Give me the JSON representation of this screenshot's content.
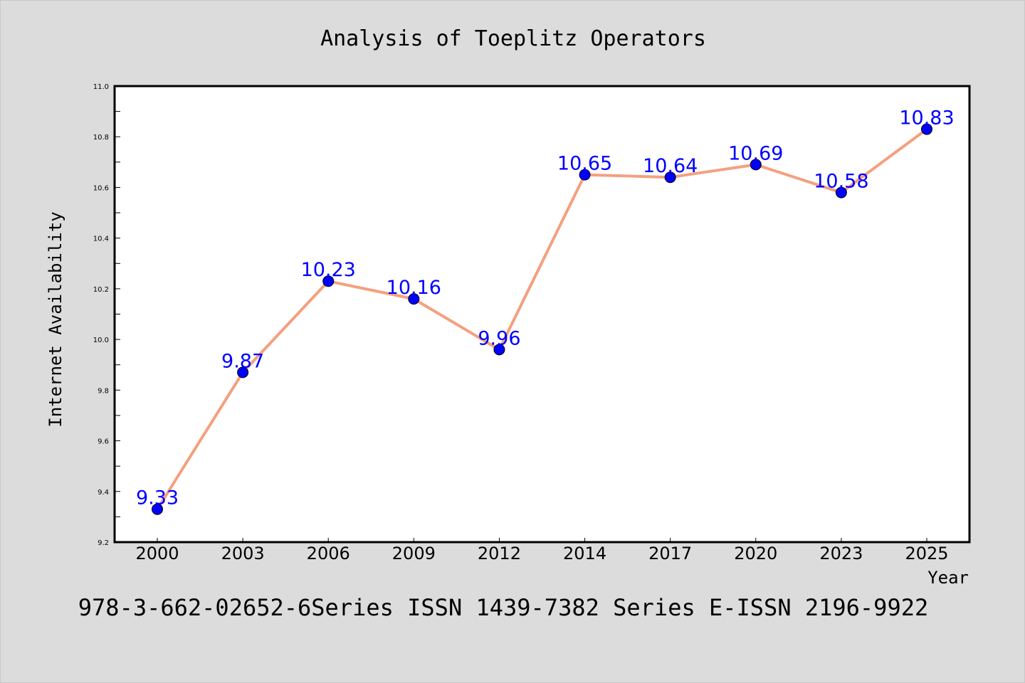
{
  "chart_data": {
    "type": "line",
    "title": "Analysis of Toeplitz Operators",
    "xlabel": "Year",
    "ylabel": "Internet Availability",
    "categories": [
      "2000",
      "2003",
      "2006",
      "2009",
      "2012",
      "2014",
      "2017",
      "2020",
      "2023",
      "2025"
    ],
    "series": [
      {
        "values": [
          9.33,
          9.87,
          10.23,
          10.16,
          9.96,
          10.65,
          10.64,
          10.69,
          10.58,
          10.83
        ],
        "labels": [
          "9.33",
          "9.87",
          "10.23",
          "10.16",
          "9.96",
          "10.65",
          "10.64",
          "10.69",
          "10.58",
          "10.83"
        ],
        "line_color": "#f4a07f",
        "marker_color": "#0000ff"
      }
    ],
    "ylim": [
      9.2,
      11.0
    ],
    "yticks": [
      "9.2",
      "9.4",
      "9.6",
      "9.8",
      "10.0",
      "10.2",
      "10.4",
      "10.6",
      "10.8",
      "11.0"
    ],
    "yticks_minor": [
      9.3,
      9.5,
      9.7,
      9.9,
      10.1,
      10.3,
      10.5,
      10.7,
      10.9
    ],
    "grid": false,
    "legend": "none",
    "background": "#dcdcdc",
    "plot_background": "#ffffff"
  },
  "footer": {
    "text": "978-3-662-02652-6Series ISSN 1439-7382 Series E-ISSN 2196-9922"
  }
}
